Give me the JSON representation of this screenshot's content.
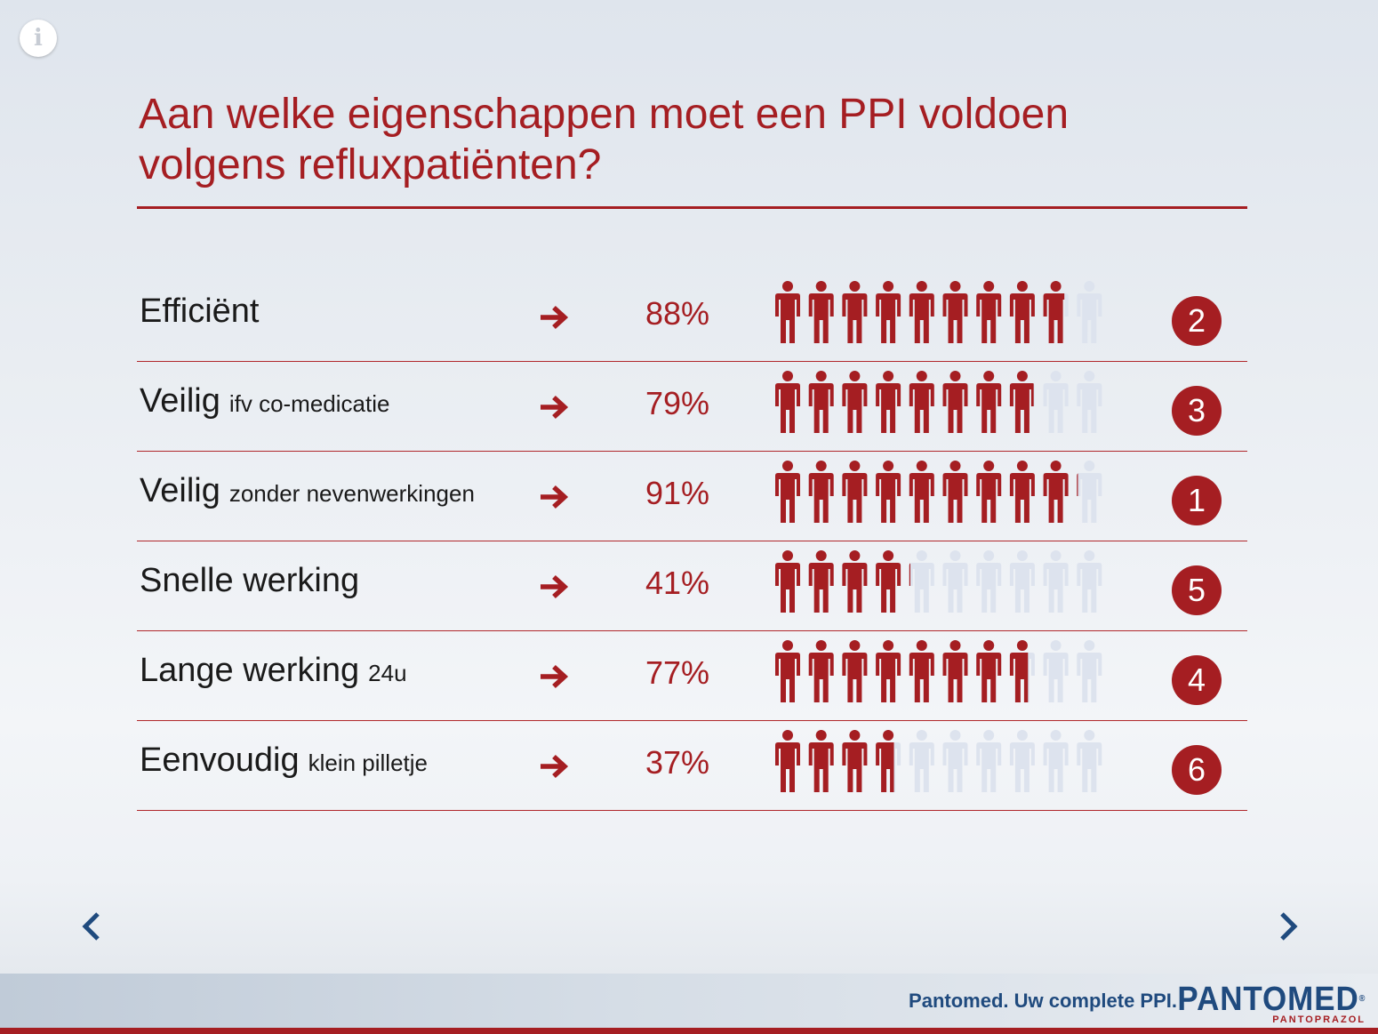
{
  "title_lines": [
    "Aan welke eigenschappen moet een PPI voldoen",
    "volgens refluxpatiënten?"
  ],
  "colors": {
    "accent": "#a51e22",
    "inactive_person": "#dde3ee",
    "nav": "#1f4a7e"
  },
  "rows": [
    {
      "label": "Efficiënt",
      "sub": "",
      "percent_text": "88%",
      "percent": 88,
      "rank": "2"
    },
    {
      "label": "Veilig",
      "sub": "ifv co-medicatie",
      "percent_text": "79%",
      "percent": 79,
      "rank": "3"
    },
    {
      "label": "Veilig",
      "sub": "zonder nevenwerkingen",
      "percent_text": "91%",
      "percent": 91,
      "rank": "1"
    },
    {
      "label": "Snelle werking",
      "sub": "",
      "percent_text": "41%",
      "percent": 41,
      "rank": "5"
    },
    {
      "label": "Lange werking",
      "sub": "24u",
      "percent_text": "77%",
      "percent": 77,
      "rank": "4"
    },
    {
      "label": "Eenvoudig",
      "sub": "klein pilletje",
      "percent_text": "37%",
      "percent": 37,
      "rank": "6"
    }
  ],
  "icons": {
    "info": "info-icon",
    "row_arrow": "arrow-right-icon",
    "person": "person-icon",
    "prev": "chevron-left-icon",
    "next": "chevron-right-icon"
  },
  "info_glyph": "i",
  "footer": {
    "tagline": "Pantomed. Uw complete PPI.",
    "logo": "PANTOMED",
    "logo_reg": "®",
    "logo_sub": "PANTOPRAZOL"
  }
}
